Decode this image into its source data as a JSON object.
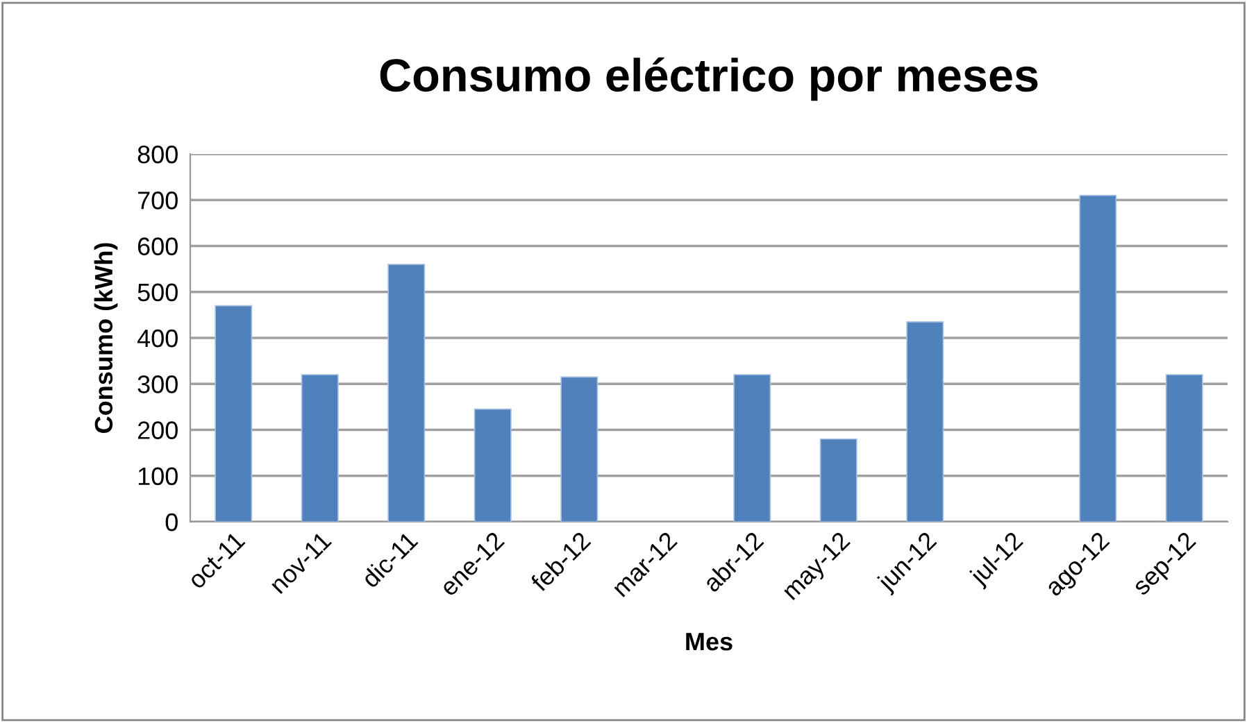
{
  "chart_data": {
    "type": "bar",
    "title": "Consumo eléctrico por meses",
    "xlabel": "Mes",
    "ylabel": "Consumo (kWh)",
    "categories": [
      "oct-11",
      "nov-11",
      "dic-11",
      "ene-12",
      "feb-12",
      "mar-12",
      "abr-12",
      "may-12",
      "jun-12",
      "jul-12",
      "ago-12",
      "sep-12"
    ],
    "values": [
      470,
      320,
      560,
      245,
      315,
      null,
      320,
      180,
      435,
      null,
      710,
      320
    ],
    "color": "#4f81bd",
    "ylim": [
      0,
      800
    ],
    "yticks": [
      0,
      100,
      200,
      300,
      400,
      500,
      600,
      700,
      800
    ],
    "grid": "y",
    "legend": false
  }
}
